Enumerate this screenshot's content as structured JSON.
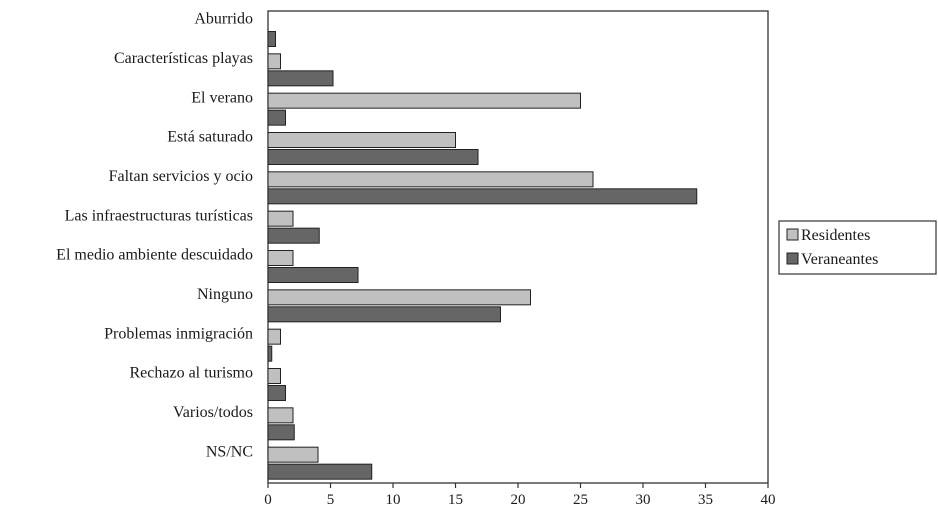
{
  "chart_data": {
    "type": "bar",
    "orientation": "horizontal",
    "categories": [
      "Aburrido",
      "Características playas",
      "El verano",
      "Está saturado",
      "Faltan servicios y ocio",
      "Las infraestructuras turísticas",
      "El medio ambiente descuidado",
      "Ninguno",
      "Problemas inmigración",
      "Rechazo al turismo",
      "Varios/todos",
      "NS/NC"
    ],
    "series": [
      {
        "name": "Residentes",
        "color": "#c0c0c0",
        "values": [
          0,
          1,
          25,
          15,
          26,
          2,
          2,
          21,
          1,
          1,
          2,
          4
        ]
      },
      {
        "name": "Veraneantes",
        "color": "#666666",
        "values": [
          0.6,
          5.2,
          1.4,
          16.8,
          34.3,
          4.1,
          7.2,
          18.6,
          0.3,
          1.4,
          2.1,
          8.3
        ]
      }
    ],
    "xlim": [
      0,
      40
    ],
    "xticks": [
      "0",
      "5",
      "10",
      "15",
      "20",
      "25",
      "30",
      "35",
      "40"
    ],
    "grid": false,
    "legend_position": "right"
  }
}
